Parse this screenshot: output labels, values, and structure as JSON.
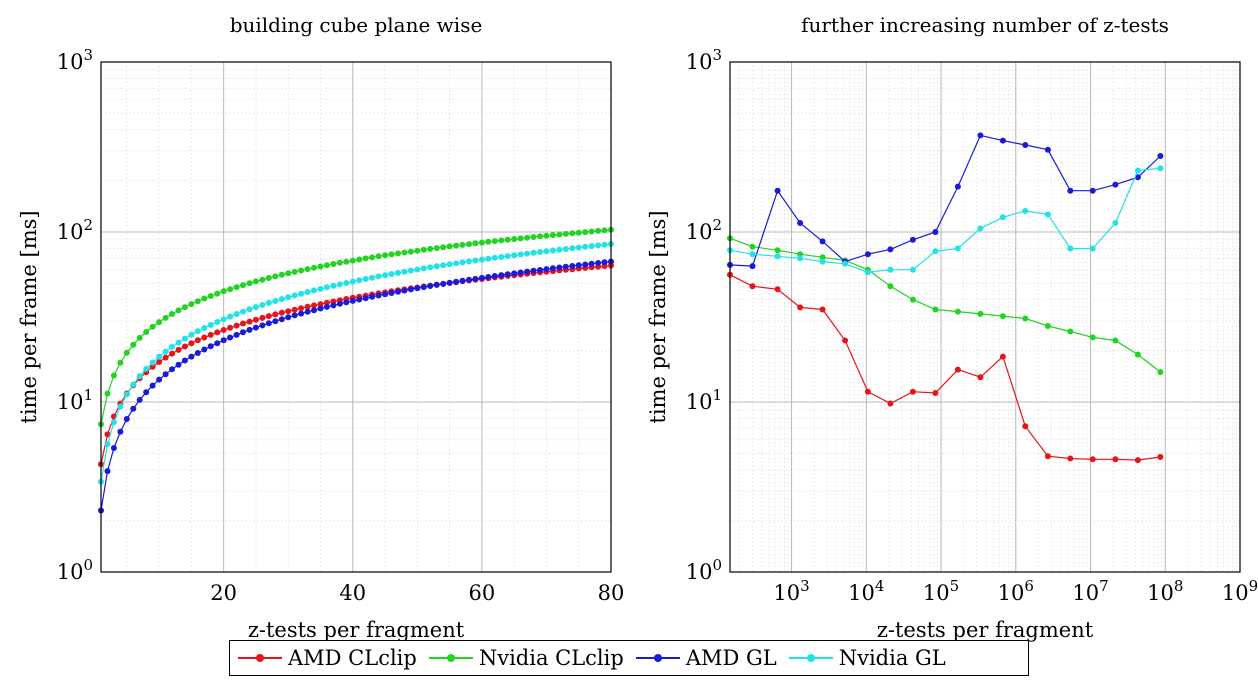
{
  "chart_data": [
    {
      "type": "line",
      "title": "building cube plane wise",
      "xlabel": "z-tests per fragment",
      "ylabel": "time per frame [ms]",
      "xscale": "linear",
      "yscale": "log",
      "xlim": [
        1,
        80
      ],
      "ylim": [
        1,
        1000
      ],
      "xticks": [
        "20",
        "40",
        "60",
        "80"
      ],
      "yticks": [
        "10^0",
        "10^1",
        "10^2",
        "10^3"
      ],
      "grid": true,
      "series": [
        {
          "name": "AMD CLclip",
          "color": "#e8141a",
          "x_range": [
            1,
            80
          ],
          "y_at": [
            4.3,
            63.5
          ],
          "exponent": 0.637
        },
        {
          "name": "Nvidia CLclip",
          "color": "#22d322",
          "x_range": [
            1,
            80
          ],
          "y_at": [
            7.4,
            103.0
          ],
          "exponent": 0.601
        },
        {
          "name": "AMD GL",
          "color": "#1a1adb",
          "x_range": [
            1,
            80
          ],
          "y_at": [
            2.3,
            67.0
          ],
          "exponent": 0.769
        },
        {
          "name": "Nvidia GL",
          "color": "#22e2e8",
          "x_range": [
            1,
            80
          ],
          "y_at": [
            3.4,
            85.0
          ],
          "exponent": 0.735
        }
      ]
    },
    {
      "type": "line",
      "title": "further increasing number of z-tests",
      "xlabel": "z-tests per fragment",
      "ylabel": "time per frame [ms]",
      "xscale": "log",
      "yscale": "log",
      "xlim": [
        150,
        1000000000
      ],
      "ylim": [
        1,
        1000
      ],
      "xticks": [
        "10^3",
        "10^4",
        "10^5",
        "10^6",
        "10^7",
        "10^8",
        "10^9"
      ],
      "yticks": [
        "10^0",
        "10^1",
        "10^2",
        "10^3"
      ],
      "grid": true,
      "x": [
        150,
        300,
        650,
        1300,
        2600,
        5200,
        10500,
        21000,
        42000,
        84000,
        168000,
        336000,
        672000,
        1340000,
        2690000,
        5370000,
        10700000,
        21500000,
        43000000,
        86000000
      ],
      "series": [
        {
          "name": "AMD CLclip",
          "color": "#e8141a",
          "values": [
            56,
            48,
            46,
            36,
            35,
            23,
            11.5,
            9.8,
            11.5,
            11.3,
            15.5,
            14,
            18.5,
            7.2,
            4.8,
            4.65,
            4.6,
            4.6,
            4.55,
            4.75
          ]
        },
        {
          "name": "Nvidia CLclip",
          "color": "#22d322",
          "values": [
            92,
            82,
            78,
            74,
            71,
            68,
            60,
            48,
            40,
            35,
            34,
            33,
            32,
            31,
            28,
            26,
            24,
            23,
            19,
            15
          ]
        },
        {
          "name": "AMD GL",
          "color": "#1a1adb",
          "values": [
            64,
            63,
            175,
            113,
            88,
            67,
            74,
            79,
            90,
            100,
            185,
            370,
            345,
            325,
            305,
            175,
            175,
            190,
            210,
            280
          ]
        },
        {
          "name": "Nvidia GL",
          "color": "#22e2e8",
          "values": [
            78,
            74,
            72,
            70,
            67,
            65,
            58,
            60,
            60,
            77,
            80,
            105,
            122,
            133,
            127,
            80,
            80,
            113,
            230,
            237
          ]
        }
      ]
    }
  ],
  "legend": {
    "items": [
      {
        "label": "AMD CLclip",
        "color": "#e8141a"
      },
      {
        "label": "Nvidia CLclip",
        "color": "#22d322"
      },
      {
        "label": "AMD GL",
        "color": "#1a1adb"
      },
      {
        "label": "Nvidia GL",
        "color": "#22e2e8"
      }
    ]
  }
}
